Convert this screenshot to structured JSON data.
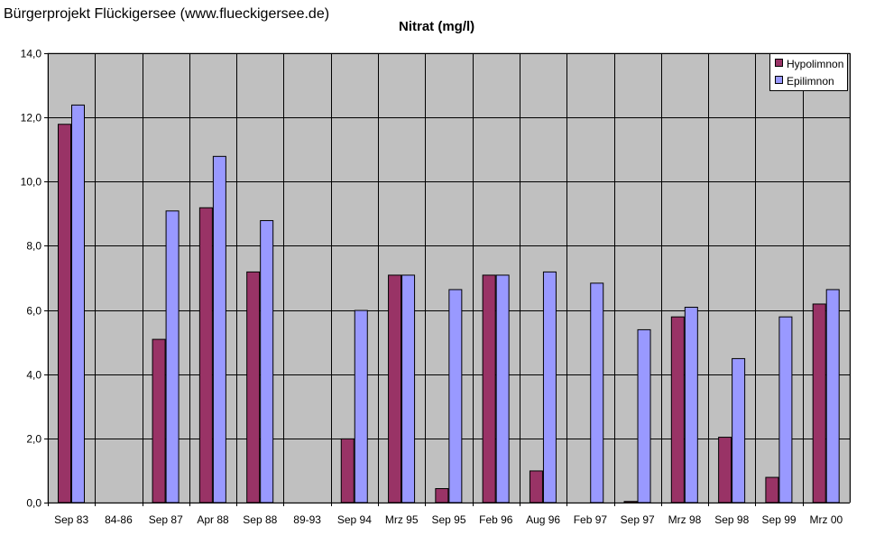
{
  "header": {
    "text": "Bürgerprojekt Flückigersee (www.flueckigersee.de)"
  },
  "chart_data": {
    "type": "bar",
    "title": "Nitrat (mg/l)",
    "xlabel": "",
    "ylabel": "",
    "ylim": [
      0,
      14
    ],
    "yticks": [
      "0,0",
      "2,0",
      "4,0",
      "6,0",
      "8,0",
      "10,0",
      "12,0",
      "14,0"
    ],
    "grid": true,
    "legend_position": "top-right",
    "categories": [
      "Sep 83",
      "84-86",
      "Sep 87",
      "Apr 88",
      "Sep 88",
      "89-93",
      "Sep 94",
      "Mrz 95",
      "Sep 95",
      "Feb 96",
      "Aug 96",
      "Feb 97",
      "Sep 97",
      "Mrz 98",
      "Sep 98",
      "Sep 99",
      "Mrz 00"
    ],
    "series": [
      {
        "name": "Hypolimnon",
        "color": "#993366",
        "values": [
          11.8,
          null,
          5.1,
          9.2,
          7.2,
          null,
          2.0,
          7.1,
          0.45,
          7.1,
          1.0,
          null,
          0.05,
          5.8,
          2.05,
          0.8,
          6.2
        ]
      },
      {
        "name": "Epilimnon",
        "color": "#9999ff",
        "values": [
          12.4,
          null,
          9.1,
          10.8,
          8.8,
          null,
          6.0,
          7.1,
          6.65,
          7.1,
          7.2,
          6.85,
          5.4,
          6.1,
          4.5,
          5.8,
          6.65
        ]
      }
    ]
  },
  "colors": {
    "plot_background": "#c0c0c0",
    "gridline": "#000000"
  }
}
